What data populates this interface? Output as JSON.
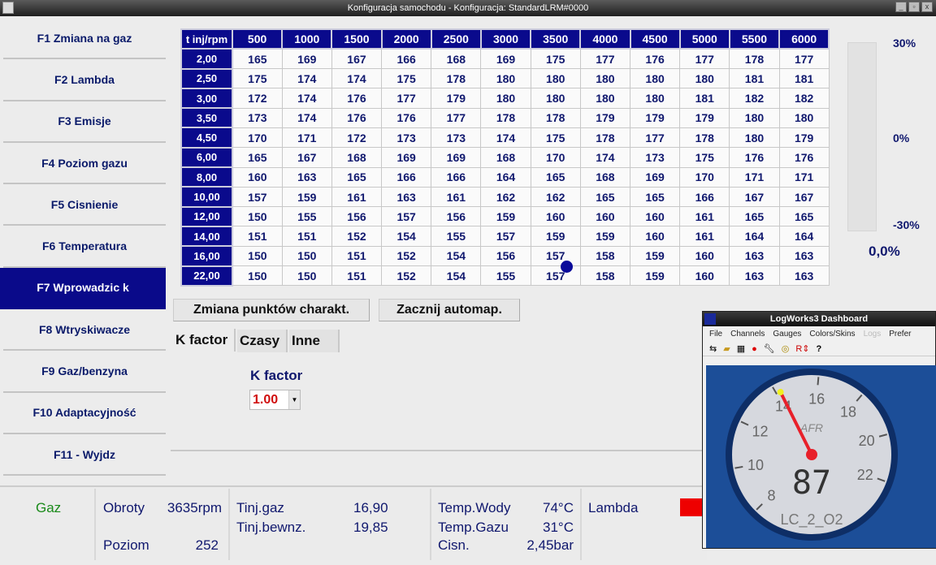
{
  "window": {
    "title": "Konfiguracja samochodu - Konfiguracja: StandardLRM#0000",
    "buttons": [
      "_",
      "▫",
      "x"
    ]
  },
  "sidebar": {
    "items": [
      {
        "label": "F1 Zmiana na gaz"
      },
      {
        "label": "F2 Lambda"
      },
      {
        "label": "F3 Emisje"
      },
      {
        "label": "F4 Poziom gazu"
      },
      {
        "label": "F5 Cisnienie"
      },
      {
        "label": "F6 Temperatura"
      },
      {
        "label": "F7 Wprowadzic k",
        "active": true
      },
      {
        "label": "F8 Wtryskiwacze"
      },
      {
        "label": "F9 Gaz/benzyna"
      },
      {
        "label": "F10 Adaptacyjność"
      },
      {
        "label": "F11 - Wyjdz"
      }
    ]
  },
  "map": {
    "corner": "t inj/rpm",
    "rpm": [
      "500",
      "1000",
      "1500",
      "2000",
      "2500",
      "3000",
      "3500",
      "4000",
      "4500",
      "5000",
      "5500",
      "6000"
    ],
    "tinj": [
      "2,00",
      "2,50",
      "3,00",
      "3,50",
      "4,50",
      "6,00",
      "8,00",
      "10,00",
      "12,00",
      "14,00",
      "16,00",
      "22,00"
    ],
    "values": [
      [
        165,
        169,
        167,
        166,
        168,
        169,
        175,
        177,
        176,
        177,
        178,
        177
      ],
      [
        175,
        174,
        174,
        175,
        178,
        180,
        180,
        180,
        180,
        180,
        181,
        181
      ],
      [
        172,
        174,
        176,
        177,
        179,
        180,
        180,
        180,
        180,
        181,
        182,
        182
      ],
      [
        173,
        174,
        176,
        176,
        177,
        178,
        178,
        179,
        179,
        179,
        180,
        180
      ],
      [
        170,
        171,
        172,
        173,
        173,
        174,
        175,
        178,
        177,
        178,
        180,
        179
      ],
      [
        165,
        167,
        168,
        169,
        169,
        168,
        170,
        174,
        173,
        175,
        176,
        176
      ],
      [
        160,
        163,
        165,
        166,
        166,
        164,
        165,
        168,
        169,
        170,
        171,
        171
      ],
      [
        157,
        159,
        161,
        163,
        161,
        162,
        162,
        165,
        165,
        166,
        167,
        167
      ],
      [
        150,
        155,
        156,
        157,
        156,
        159,
        160,
        160,
        160,
        161,
        165,
        165
      ],
      [
        151,
        151,
        152,
        154,
        155,
        157,
        159,
        159,
        160,
        161,
        164,
        164
      ],
      [
        150,
        150,
        151,
        152,
        154,
        156,
        157,
        158,
        159,
        160,
        163,
        163
      ],
      [
        150,
        150,
        151,
        152,
        154,
        155,
        157,
        158,
        159,
        160,
        163,
        163
      ]
    ]
  },
  "correction": {
    "top": "30%",
    "mid": "0%",
    "bottom": "-30%",
    "value": "0,0%"
  },
  "buttons": {
    "change_points": "Zmiana punktów charakt.",
    "start_automap": "Zacznij automap."
  },
  "tabs": [
    {
      "label": "K factor",
      "active": true
    },
    {
      "label": "Czasy"
    },
    {
      "label": "Inne"
    }
  ],
  "kfactor": {
    "label": "K factor",
    "value": "1.00"
  },
  "status": {
    "fuel": "Gaz",
    "rpm_label": "Obroty",
    "rpm": "3635rpm",
    "level_label": "Poziom",
    "level": "252",
    "tinj_gas_label": "Tinj.gaz",
    "tinj_gas": "16,90",
    "tinj_pet_label": "Tinj.bewnz.",
    "tinj_pet": "19,85",
    "water_label": "Temp.Wody",
    "water": "74°C",
    "gas_temp_label": "Temp.Gazu",
    "gas_temp": "31°C",
    "press_label": "Cisn.",
    "press": "2,45bar",
    "lambda_label": "Lambda",
    "lambda_color": "#ee0000"
  },
  "logworks": {
    "title": "LogWorks3 Dashboard",
    "menu": [
      "File",
      "Channels",
      "Gauges",
      "Colors/Skins",
      "Logs",
      "Prefer"
    ],
    "gauge": {
      "ticks": [
        "8",
        "10",
        "12",
        "14",
        "16",
        "18",
        "20",
        "22"
      ],
      "unit": "AFR",
      "readout": "87",
      "channel": "LC_2_O2",
      "needle_value": 14.2
    }
  }
}
